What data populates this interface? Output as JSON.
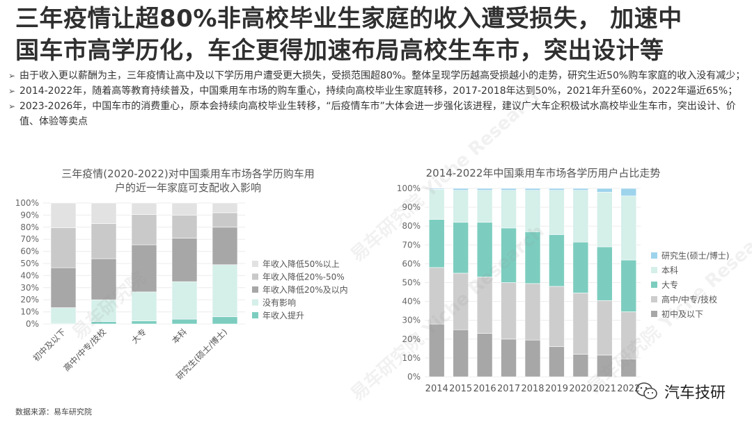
{
  "header": {
    "title_line1": "三年疫情让超80%非高校毕业生家庭的收入遭受损失， 加速中",
    "title_line2": "国车市高学历化，车企更得加速布局高校生车市，突出设计等"
  },
  "bullets": [
    "由于收入更以薪酬为主，三年疫情让高中及以下学历用户遭受更大损失，受损范围超80%。整体呈现学历越高受损越小的走势，研究生近50%购车家庭的收入没有减少；",
    "2014-2022年，随着高等教育持续普及，中国乘用车市场的购车重心，持续向高校毕业生家庭转移，2017-2018年达到50%，2021年升至60%，2022年逼近65%；",
    "2023-2026年，中国车市的消费重心，原本会持续向高校毕业生转移，“后疫情车市”大体会进一步强化该进程，建议广大车企积极试水高校毕业生车市，突出设计、价值、体验等卖点"
  ],
  "watermark": {
    "cn": "易车研究院",
    "en": "Yiche Research"
  },
  "footer": {
    "source": "数据来源：易车研究院",
    "brand": "汽车技研"
  },
  "chart_data": [
    {
      "type": "bar",
      "stacked": true,
      "title_lines": [
        "三年疫情(2020-2022)对中国乘用车市场各学历购车用",
        "户的近一年家庭可支配收入影响"
      ],
      "categories": [
        "初中及以下",
        "高中/中专/技校",
        "大专",
        "本科",
        "研究生(硕士/博士)"
      ],
      "ylim": [
        0,
        100
      ],
      "yticks": [
        "0%",
        "10%",
        "20%",
        "30%",
        "40%",
        "50%",
        "60%",
        "70%",
        "80%",
        "90%",
        "100%"
      ],
      "legend_position": "right",
      "series": [
        {
          "name": "年收入提升",
          "color": "#7ccdbf",
          "values": [
            0.5,
            2,
            2.5,
            4,
            6
          ]
        },
        {
          "name": "没有影响",
          "color": "#d5efe9",
          "values": [
            13,
            18,
            24,
            31,
            43
          ]
        },
        {
          "name": "年收入降低20%及以内",
          "color": "#a7a7a7",
          "values": [
            33,
            34,
            39,
            36,
            31
          ]
        },
        {
          "name": "年收入降低20%-50%",
          "color": "#c9c9c9",
          "values": [
            33,
            29,
            25,
            19,
            12
          ]
        },
        {
          "name": "年收入降低50%以上",
          "color": "#e2e2e2",
          "values": [
            20.5,
            17,
            9.5,
            10,
            8
          ]
        }
      ]
    },
    {
      "type": "bar",
      "stacked": true,
      "title": "2014-2022年中国乘用车市场各学历用户占比走势",
      "categories": [
        "2014",
        "2015",
        "2016",
        "2017",
        "2018",
        "2019",
        "2020",
        "2021",
        "2022"
      ],
      "ylim": [
        0,
        100
      ],
      "yticks": [
        "0%",
        "10%",
        "20%",
        "30%",
        "40%",
        "50%",
        "60%",
        "70%",
        "80%",
        "90%",
        "100%"
      ],
      "legend_position": "right",
      "series": [
        {
          "name": "初中及以下",
          "color": "#a7a7a7",
          "values": [
            28,
            25,
            23,
            20,
            19.5,
            16,
            12,
            11.5,
            9.5
          ]
        },
        {
          "name": "高中/中专/技校",
          "color": "#cdcdcd",
          "values": [
            30,
            30,
            30,
            30,
            30,
            32,
            32.5,
            29,
            25
          ]
        },
        {
          "name": "大专",
          "color": "#7ccdbf",
          "values": [
            25.5,
            27,
            29,
            29,
            27.5,
            27.5,
            27,
            28.5,
            27.5
          ]
        },
        {
          "name": "本科",
          "color": "#d5efe9",
          "values": [
            16,
            17,
            17,
            20,
            22,
            23.5,
            27.5,
            29,
            34
          ]
        },
        {
          "name": "研究生(硕士/博士)",
          "color": "#9ed3ec",
          "values": [
            0.5,
            1,
            1,
            1,
            1,
            1,
            1,
            2,
            4
          ]
        }
      ]
    }
  ]
}
